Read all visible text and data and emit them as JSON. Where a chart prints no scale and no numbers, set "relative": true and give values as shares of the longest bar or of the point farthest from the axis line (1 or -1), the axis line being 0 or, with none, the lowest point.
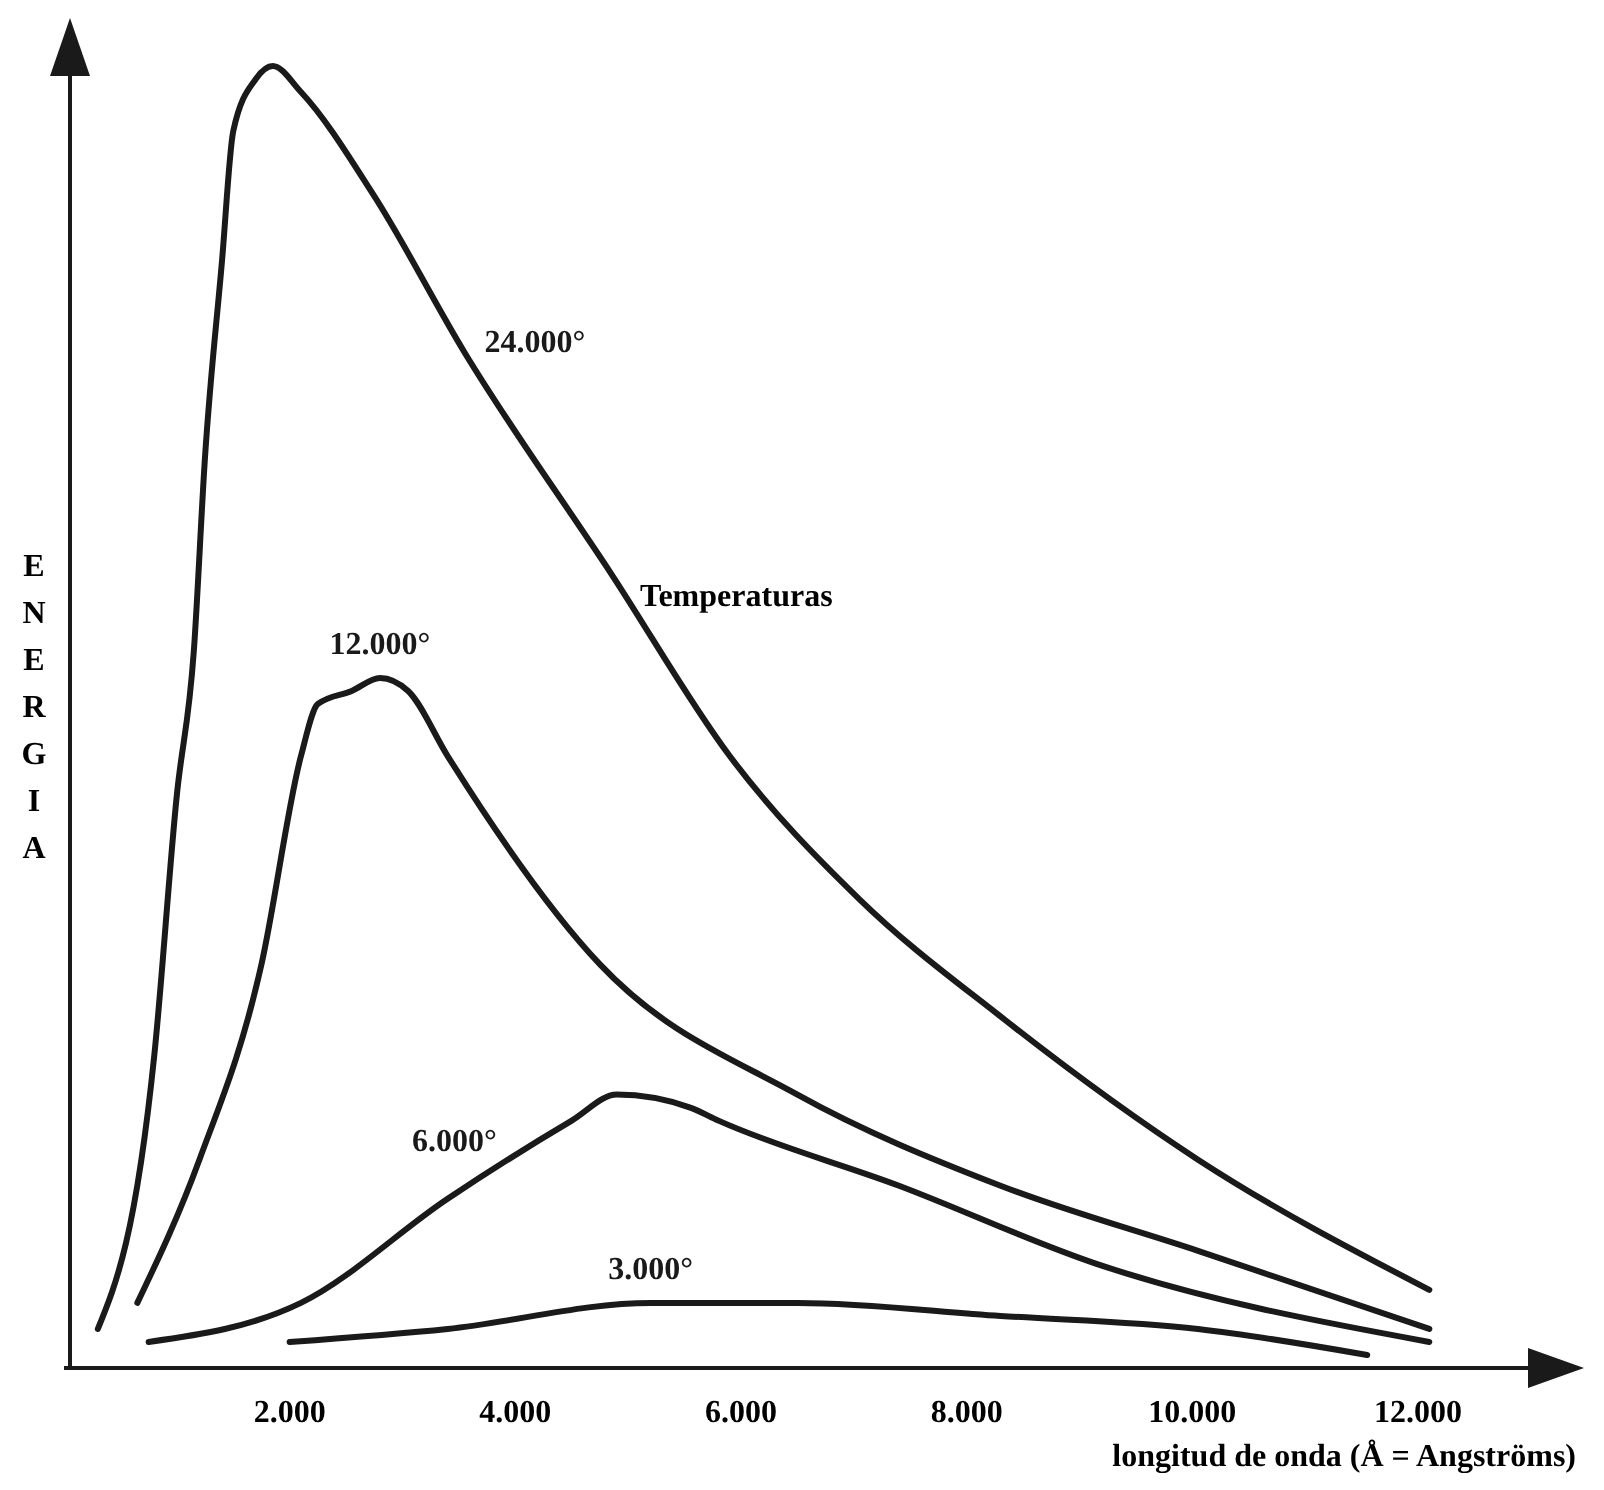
{
  "chart_data": {
    "type": "line",
    "relative": true,
    "xlabel": "longitud de onda (Å = Angströms)",
    "ylabel": "ENERGIA",
    "annotations": [
      "Temperaturas"
    ],
    "xlim": [
      0,
      13400
    ],
    "xticks": [
      {
        "value": 2000,
        "label": "2.000"
      },
      {
        "value": 4000,
        "label": "4.000"
      },
      {
        "value": 6000,
        "label": "6.000"
      },
      {
        "value": 8000,
        "label": "8.000"
      },
      {
        "value": 10000,
        "label": "10.000"
      },
      {
        "value": 12000,
        "label": "12.000"
      }
    ],
    "grid": false,
    "marker": "none",
    "line_style": "solid",
    "series": [
      {
        "name": "24.000°",
        "color": "#1a1a1a",
        "x": [
          300,
          800,
          1000,
          1150,
          1250,
          1400,
          1500,
          1700,
          1850,
          2100,
          2750,
          3550,
          4850,
          5900,
          7050,
          8300,
          10050,
          12100
        ],
        "values": [
          0.03,
          0.24,
          0.44,
          0.55,
          0.7,
          0.85,
          0.95,
          0.99,
          1.0,
          0.98,
          0.9,
          0.78,
          0.61,
          0.47,
          0.36,
          0.27,
          0.16,
          0.06
        ]
      },
      {
        "name": "12.000°",
        "color": "#1a1a1a",
        "x": [
          650,
          1200,
          1750,
          2100,
          2250,
          2550,
          2800,
          3050,
          3400,
          4750,
          6500,
          8300,
          10050,
          12100
        ],
        "values": [
          0.05,
          0.16,
          0.31,
          0.47,
          0.51,
          0.52,
          0.53,
          0.52,
          0.47,
          0.31,
          0.21,
          0.14,
          0.09,
          0.03
        ]
      },
      {
        "name": "6.000°",
        "color": "#1a1a1a",
        "x": [
          750,
          2100,
          3400,
          4500,
          4900,
          5550,
          5800,
          7400,
          9150,
          12100
        ],
        "values": [
          0.02,
          0.05,
          0.13,
          0.19,
          0.21,
          0.2,
          0.19,
          0.14,
          0.08,
          0.02
        ]
      },
      {
        "name": "3.000°",
        "color": "#1a1a1a",
        "x": [
          2000,
          3400,
          5200,
          6500,
          8300,
          10050,
          11550
        ],
        "values": [
          0.02,
          0.03,
          0.05,
          0.05,
          0.04,
          0.03,
          0.01
        ]
      }
    ]
  }
}
